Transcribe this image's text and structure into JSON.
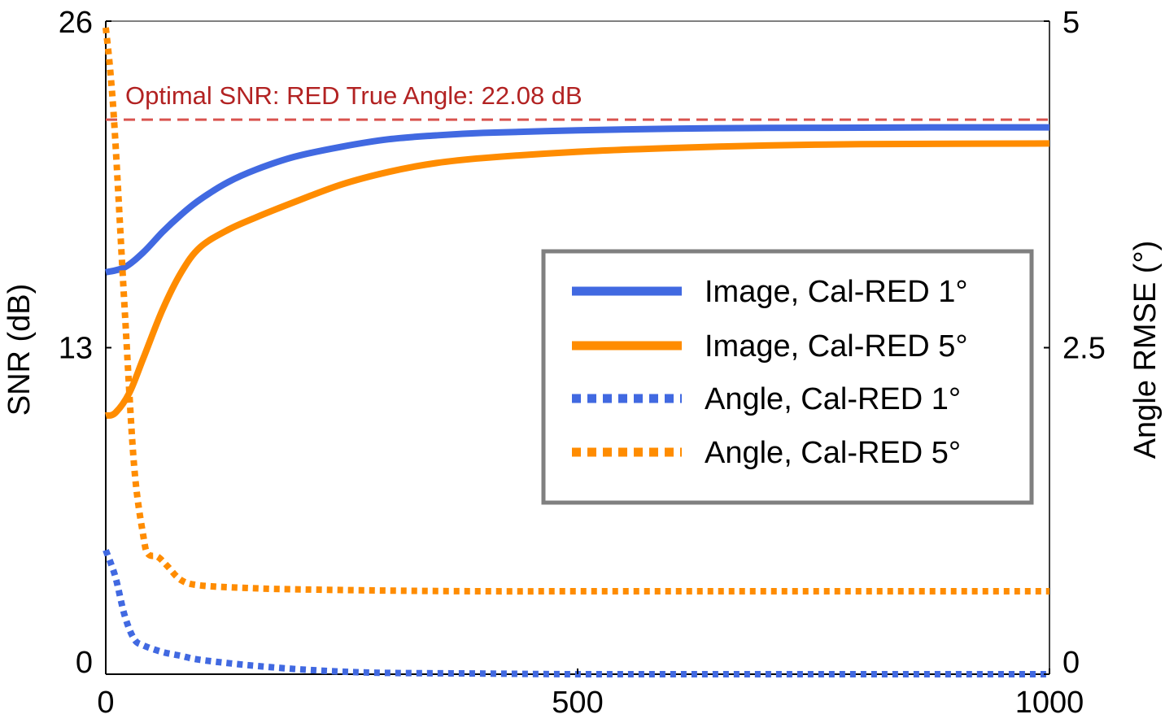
{
  "chart_data": {
    "type": "line",
    "title": "",
    "xlabel": "",
    "ylabel": "SNR (dB)",
    "y2label": "Angle RMSE (°)",
    "xlim": [
      0,
      1000
    ],
    "ylim": [
      0,
      26
    ],
    "y2lim": [
      0,
      5
    ],
    "xticks": [
      "0",
      "500",
      "1000"
    ],
    "yticks": [
      "0",
      "13",
      "26"
    ],
    "y2ticks": [
      "0",
      "2.5",
      "5"
    ],
    "grid": false,
    "legend_position": "center-right",
    "reference_line": {
      "label": "Optimal SNR: RED True Angle: 22.08 dB",
      "value": 22.08,
      "color": "#d9534f",
      "text_color": "#b22222"
    },
    "series": [
      {
        "name": "Image, Cal-RED 1°",
        "axis": "left",
        "style": "solid",
        "color": "#4169e1",
        "x": [
          0,
          20,
          40,
          60,
          80,
          100,
          130,
          160,
          200,
          250,
          300,
          350,
          400,
          500,
          600,
          700,
          800,
          900,
          1000
        ],
        "y": [
          16.0,
          16.2,
          16.8,
          17.6,
          18.3,
          18.9,
          19.6,
          20.1,
          20.6,
          21.0,
          21.3,
          21.45,
          21.55,
          21.65,
          21.72,
          21.75,
          21.76,
          21.77,
          21.77
        ]
      },
      {
        "name": "Image, Cal-RED 5°",
        "axis": "left",
        "style": "solid",
        "color": "#ff8c00",
        "x": [
          0,
          10,
          25,
          40,
          60,
          80,
          100,
          130,
          160,
          200,
          250,
          300,
          350,
          400,
          500,
          600,
          700,
          800,
          900,
          1000
        ],
        "y": [
          10.3,
          10.4,
          11.2,
          12.6,
          14.5,
          16.0,
          17.0,
          17.7,
          18.2,
          18.8,
          19.5,
          20.0,
          20.35,
          20.55,
          20.8,
          20.95,
          21.05,
          21.1,
          21.12,
          21.13
        ]
      },
      {
        "name": "Angle, Cal-RED 1°",
        "axis": "right",
        "style": "dotted",
        "color": "#4169e1",
        "x": [
          0,
          10,
          20,
          30,
          40,
          60,
          80,
          100,
          150,
          200,
          250,
          300,
          400,
          500,
          600,
          700,
          800,
          900,
          1000
        ],
        "y": [
          0.95,
          0.75,
          0.45,
          0.27,
          0.22,
          0.17,
          0.14,
          0.11,
          0.07,
          0.04,
          0.02,
          0.01,
          0.005,
          0.0,
          0.0,
          0.0,
          0.0,
          0.0,
          0.0
        ]
      },
      {
        "name": "Angle, Cal-RED 5°",
        "axis": "right",
        "style": "dotted",
        "color": "#ff8c00",
        "x": [
          0,
          5,
          10,
          20,
          30,
          40,
          45,
          55,
          65,
          80,
          100,
          150,
          200,
          300,
          400,
          500,
          600,
          700,
          800,
          900,
          1000
        ],
        "y": [
          4.95,
          4.6,
          4.1,
          2.8,
          1.6,
          1.05,
          0.92,
          0.9,
          0.83,
          0.72,
          0.68,
          0.66,
          0.65,
          0.64,
          0.635,
          0.635,
          0.635,
          0.635,
          0.635,
          0.635,
          0.635
        ]
      }
    ]
  }
}
